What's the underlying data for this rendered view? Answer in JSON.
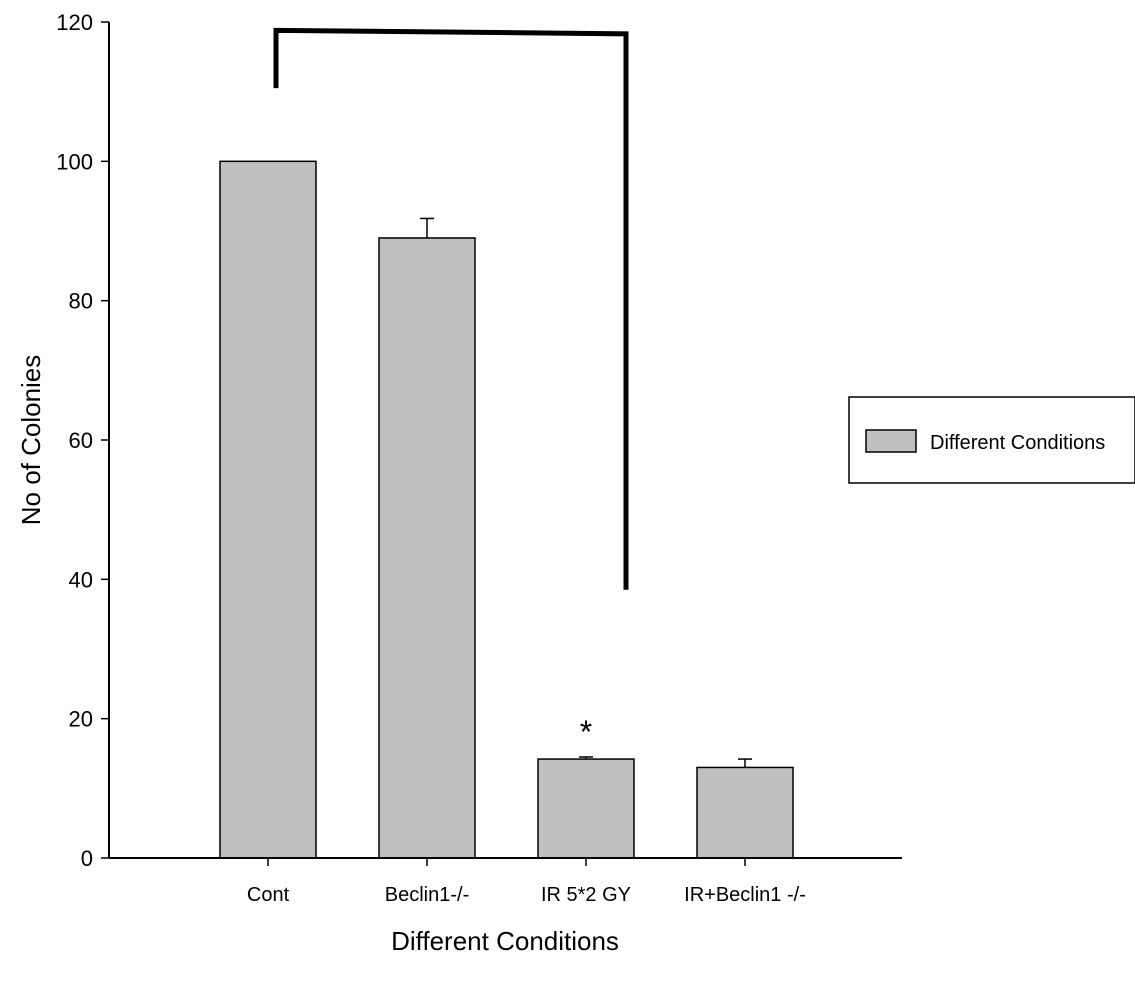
{
  "chart_data": {
    "type": "bar",
    "title": "",
    "xlabel": "Different Conditions",
    "ylabel": "No of Colonies",
    "ylim": [
      0,
      120
    ],
    "yticks": [
      0,
      20,
      40,
      60,
      80,
      100,
      120
    ],
    "categories": [
      "Cont",
      "Beclin1-/-",
      "IR 5*2 GY",
      "IR+Beclin1 -/-"
    ],
    "series": [
      {
        "name": "Different Conditions",
        "values": [
          100,
          89,
          14.2,
          13
        ],
        "errors": [
          0,
          2.8,
          0.3,
          1.2
        ],
        "color": "#c0c0c0"
      }
    ],
    "annotations": [
      {
        "text": "*",
        "category": "IR 5*2 GY"
      }
    ],
    "significance_bracket": {
      "from": "Cont",
      "to": "IR 5*2 GY"
    },
    "legend": {
      "placement": "right",
      "labels": [
        "Different Conditions"
      ]
    },
    "grid": false
  }
}
